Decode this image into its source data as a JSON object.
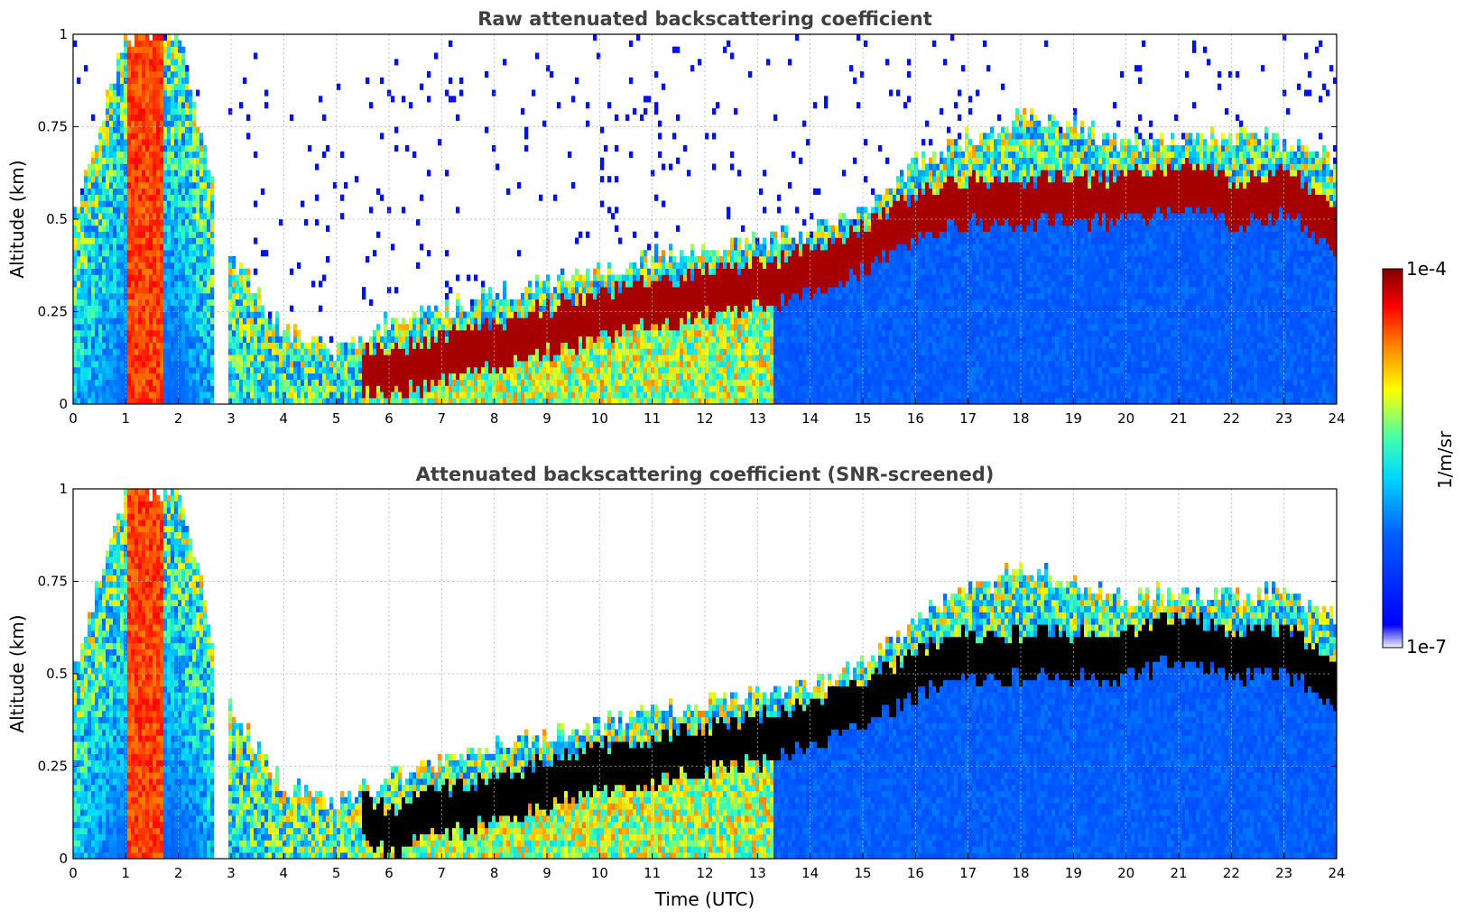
{
  "chart_data": [
    {
      "type": "heatmap",
      "title": "Raw attenuated backscattering coefficient",
      "ylabel": "Altitude (km)",
      "xlabel": "",
      "xlim": [
        0,
        24
      ],
      "ylim": [
        0,
        1
      ],
      "x_ticks": [
        0,
        1,
        2,
        3,
        4,
        5,
        6,
        7,
        8,
        9,
        10,
        11,
        12,
        13,
        14,
        15,
        16,
        17,
        18,
        19,
        20,
        21,
        22,
        23,
        24
      ],
      "y_ticks": [
        0,
        0.25,
        0.5,
        0.75,
        1
      ],
      "y_tick_labels": [
        "0",
        "0.25",
        "0.5",
        "0.75",
        "1"
      ],
      "grid": true,
      "screened": false,
      "layer_top_km": [
        [
          0,
          0.5
        ],
        [
          1,
          1.0
        ],
        [
          2,
          1.0
        ],
        [
          3,
          0.4
        ],
        [
          4,
          0.2
        ],
        [
          5,
          0.15
        ],
        [
          5.5,
          0.18
        ],
        [
          6,
          0.22
        ],
        [
          7,
          0.26
        ],
        [
          8,
          0.3
        ],
        [
          9,
          0.33
        ],
        [
          10,
          0.36
        ],
        [
          11,
          0.4
        ],
        [
          12,
          0.42
        ],
        [
          13,
          0.45
        ],
        [
          14,
          0.47
        ],
        [
          15,
          0.52
        ],
        [
          16,
          0.65
        ],
        [
          17,
          0.72
        ],
        [
          18,
          0.78
        ],
        [
          19,
          0.75
        ],
        [
          20,
          0.7
        ],
        [
          21,
          0.72
        ],
        [
          22,
          0.72
        ],
        [
          23,
          0.72
        ],
        [
          24,
          0.65
        ]
      ],
      "boundary_layer_km": [
        [
          5.5,
          0.1
        ],
        [
          6,
          0.08
        ],
        [
          7,
          0.12
        ],
        [
          8,
          0.16
        ],
        [
          9,
          0.2
        ],
        [
          10,
          0.24
        ],
        [
          11,
          0.27
        ],
        [
          12,
          0.3
        ],
        [
          13,
          0.32
        ],
        [
          14,
          0.36
        ],
        [
          15,
          0.42
        ],
        [
          16,
          0.5
        ],
        [
          17,
          0.55
        ],
        [
          18,
          0.55
        ],
        [
          19,
          0.55
        ],
        [
          20,
          0.55
        ],
        [
          21,
          0.6
        ],
        [
          22,
          0.55
        ],
        [
          23,
          0.57
        ],
        [
          24,
          0.48
        ]
      ]
    },
    {
      "type": "heatmap",
      "title": "Attenuated backscattering coefficient (SNR-screened)",
      "ylabel": "Altitude (km)",
      "xlabel": "Time (UTC)",
      "xlim": [
        0,
        24
      ],
      "ylim": [
        0,
        1
      ],
      "x_ticks": [
        0,
        1,
        2,
        3,
        4,
        5,
        6,
        7,
        8,
        9,
        10,
        11,
        12,
        13,
        14,
        15,
        16,
        17,
        18,
        19,
        20,
        21,
        22,
        23,
        24
      ],
      "y_ticks": [
        0,
        0.25,
        0.5,
        0.75,
        1
      ],
      "y_tick_labels": [
        "0",
        "0.25",
        "0.5",
        "0.75",
        "1"
      ],
      "grid": true,
      "screened": true,
      "layer_top_km": [
        [
          0,
          0.5
        ],
        [
          1,
          1.0
        ],
        [
          2,
          1.0
        ],
        [
          3,
          0.4
        ],
        [
          4,
          0.2
        ],
        [
          5,
          0.15
        ],
        [
          5.5,
          0.18
        ],
        [
          6,
          0.22
        ],
        [
          7,
          0.26
        ],
        [
          8,
          0.3
        ],
        [
          9,
          0.33
        ],
        [
          10,
          0.36
        ],
        [
          11,
          0.4
        ],
        [
          12,
          0.42
        ],
        [
          13,
          0.45
        ],
        [
          14,
          0.47
        ],
        [
          15,
          0.52
        ],
        [
          16,
          0.65
        ],
        [
          17,
          0.72
        ],
        [
          18,
          0.78
        ],
        [
          19,
          0.75
        ],
        [
          20,
          0.7
        ],
        [
          21,
          0.72
        ],
        [
          22,
          0.72
        ],
        [
          23,
          0.72
        ],
        [
          24,
          0.65
        ]
      ],
      "boundary_layer_km": [
        [
          5.5,
          0.1
        ],
        [
          6,
          0.08
        ],
        [
          7,
          0.12
        ],
        [
          8,
          0.16
        ],
        [
          9,
          0.2
        ],
        [
          10,
          0.24
        ],
        [
          11,
          0.27
        ],
        [
          12,
          0.3
        ],
        [
          13,
          0.32
        ],
        [
          14,
          0.36
        ],
        [
          15,
          0.42
        ],
        [
          16,
          0.5
        ],
        [
          17,
          0.55
        ],
        [
          18,
          0.55
        ],
        [
          19,
          0.55
        ],
        [
          20,
          0.55
        ],
        [
          21,
          0.6
        ],
        [
          22,
          0.55
        ],
        [
          23,
          0.57
        ],
        [
          24,
          0.48
        ]
      ]
    }
  ],
  "colorbar": {
    "label": "1/m/sr",
    "max_label": "1e-4",
    "min_label": "1e-7",
    "colormap": "jet",
    "stops": [
      "#f0f0ff",
      "#0000ff",
      "#00bfff",
      "#40ffc0",
      "#ffff00",
      "#ff8000",
      "#ff0000",
      "#800000"
    ]
  }
}
